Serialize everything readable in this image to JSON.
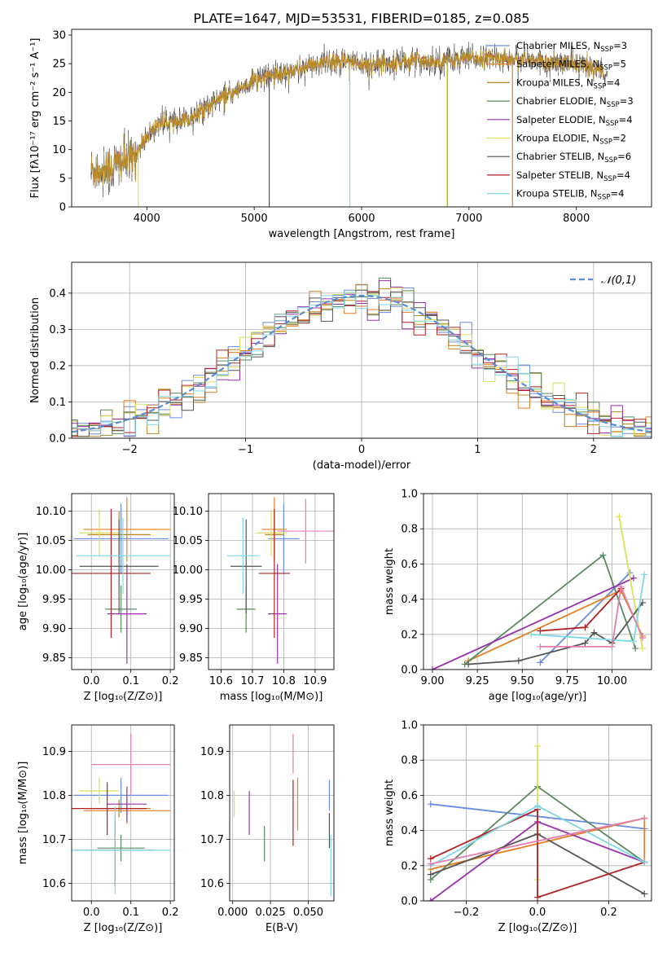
{
  "figure": {
    "title": "PLATE=1647, MJD=53531, FIBERID=0185, z=0.085"
  },
  "chart_data": [
    {
      "panel": "spectrum",
      "type": "line",
      "xlabel": "wavelength [Angstrom, rest frame]",
      "ylabel": "Flux [fλ10⁻¹⁷ erg cm⁻² s⁻¹ A⁻¹]",
      "xlim": [
        3300,
        8700
      ],
      "ylim": [
        0,
        31
      ],
      "xticks": [
        4000,
        5000,
        6000,
        7000,
        8000
      ],
      "yticks": [
        0,
        5,
        10,
        15,
        20,
        25,
        30
      ],
      "continuum": {
        "x": [
          3480,
          3600,
          3700,
          3800,
          3900,
          4000,
          4100,
          4200,
          4300,
          4400,
          4500,
          4600,
          4700,
          4800,
          4900,
          5000,
          5200,
          5400,
          5600,
          5800,
          6000,
          6200,
          6400,
          6600,
          6800,
          7000,
          7200,
          7400,
          7600,
          7800,
          8000,
          8200,
          8300
        ],
        "y": [
          6.5,
          6.5,
          7.2,
          8.0,
          9.0,
          12.5,
          14.5,
          14.8,
          14.5,
          15.5,
          17.0,
          18.0,
          19.0,
          19.8,
          21.0,
          22.0,
          23.0,
          24.0,
          25.0,
          25.5,
          25.0,
          25.0,
          25.5,
          25.5,
          25.5,
          26.0,
          26.0,
          26.0,
          25.5,
          25.0,
          25.0,
          24.0,
          23.5
        ]
      },
      "series": [
        {
          "name": "Chabrier MILES, N_SSP=3",
          "label_main": "Chabrier MILES, N",
          "label_sub": "SSP",
          "label_end": "=3",
          "color": "#6b8be0"
        },
        {
          "name": "Salpeter MILES, N_SSP=5",
          "label_main": "Salpeter MILES, N",
          "label_sub": "SSP",
          "label_end": "=5",
          "color": "#e67e22"
        },
        {
          "name": "Kroupa MILES, N_SSP=4",
          "label_main": "Kroupa MILES, N",
          "label_sub": "SSP",
          "label_end": "=4",
          "color": "#b7861f"
        },
        {
          "name": "Chabrier ELODIE, N_SSP=3",
          "label_main": "Chabrier ELODIE, N",
          "label_sub": "SSP",
          "label_end": "=3",
          "color": "#5a8a5f"
        },
        {
          "name": "Salpeter ELODIE, N_SSP=4",
          "label_main": "Salpeter ELODIE, N",
          "label_sub": "SSP",
          "label_end": "=4",
          "color": "#9b2fae"
        },
        {
          "name": "Kroupa ELODIE, N_SSP=2",
          "label_main": "Kroupa ELODIE, N",
          "label_sub": "SSP",
          "label_end": "=2",
          "color": "#d9e05a"
        },
        {
          "name": "Chabrier STELIB, N_SSP=6",
          "label_main": "Chabrier STELIB, N",
          "label_sub": "SSP",
          "label_end": "=6",
          "color": "#555555"
        },
        {
          "name": "Salpeter STELIB, N_SSP=4",
          "label_main": "Salpeter STELIB, N",
          "label_sub": "SSP",
          "label_end": "=4",
          "color": "#b22222"
        },
        {
          "name": "Kroupa STELIB, N_SSP=4",
          "label_main": "Kroupa STELIB, N",
          "label_sub": "SSP",
          "label_end": "=4",
          "color": "#7fd8e6"
        }
      ],
      "legend": "upper right"
    },
    {
      "panel": "residuals",
      "type": "histogram",
      "xlabel": "(data-model)/error",
      "ylabel": "Normed distribution",
      "xlim": [
        -2.5,
        2.5
      ],
      "ylim": [
        0,
        0.485
      ],
      "xticks": [
        -2,
        -1,
        0,
        1,
        2
      ],
      "yticks": [
        0.0,
        0.1,
        0.2,
        0.3,
        0.4
      ],
      "reference": {
        "name": "𝒩(0,1)",
        "color": "#5b8bd6"
      },
      "grid": true
    },
    {
      "panel": "age_vs_Z",
      "type": "errorbar",
      "xlabel": "Z [log₁₀(Z/Z⊙)]",
      "ylabel": "age  [log₁₀(age/yr)]",
      "xlim": [
        -0.05,
        0.21
      ],
      "ylim": [
        9.83,
        10.13
      ],
      "xticks": [
        0.0,
        0.1,
        0.2
      ],
      "yticks": [
        9.85,
        9.9,
        9.95,
        10.0,
        10.05,
        10.1
      ],
      "points": [
        {
          "series": 0,
          "x": 0.075,
          "xerr": 0.12,
          "y": 10.053,
          "yerr": 0.06
        },
        {
          "series": 1,
          "x": 0.09,
          "xerr": 0.11,
          "y": 10.069,
          "yerr": 0.055
        },
        {
          "series": 2,
          "x": 0.07,
          "xerr": 0.08,
          "y": 10.06,
          "yerr": 0.04
        },
        {
          "series": 3,
          "x": 0.075,
          "xerr": 0.04,
          "y": 9.933,
          "yerr": 0.04
        },
        {
          "series": 4,
          "x": 0.09,
          "xerr": 0.05,
          "y": 9.925,
          "yerr": 0.085
        },
        {
          "series": 5,
          "x": 0.02,
          "xerr": 0.05,
          "y": 10.063,
          "yerr": 0.04
        },
        {
          "series": 6,
          "x": 0.07,
          "xerr": 0.1,
          "y": 10.006,
          "yerr": 0.08
        },
        {
          "series": 7,
          "x": 0.05,
          "xerr": 0.1,
          "y": 9.994,
          "yerr": 0.11
        },
        {
          "series": 8,
          "x": 0.08,
          "xerr": 0.12,
          "y": 10.024,
          "yerr": 0.065
        }
      ],
      "grid": true
    },
    {
      "panel": "age_vs_mass",
      "type": "errorbar",
      "xlabel": "mass [log₁₀(M/M⊙)]",
      "ylabel": "",
      "xlim": [
        10.56,
        10.96
      ],
      "ylim": [
        9.83,
        10.13
      ],
      "xticks": [
        10.6,
        10.7,
        10.8,
        10.9
      ],
      "yticks": [
        9.85,
        9.9,
        9.95,
        10.0,
        10.05,
        10.1
      ],
      "points": [
        {
          "series": 0,
          "x": 10.8,
          "xerr": 0.05,
          "y": 10.053,
          "yerr": 0.06
        },
        {
          "series": 1,
          "x": 10.77,
          "xerr": 0.04,
          "y": 10.069,
          "yerr": 0.055
        },
        {
          "series": 2,
          "x": 10.77,
          "xerr": 0.03,
          "y": 10.06,
          "yerr": 0.04
        },
        {
          "series": 3,
          "x": 10.68,
          "xerr": 0.03,
          "y": 9.933,
          "yerr": 0.04
        },
        {
          "series": 4,
          "x": 10.78,
          "xerr": 0.03,
          "y": 9.925,
          "yerr": 0.085
        },
        {
          "series": 5,
          "x": 10.76,
          "xerr": 0.05,
          "y": 10.063,
          "yerr": 0.04
        },
        {
          "series": 6,
          "x": 10.68,
          "xerr": 0.05,
          "y": 10.006,
          "yerr": 0.08
        },
        {
          "series": 7,
          "x": 10.77,
          "xerr": 0.05,
          "y": 9.994,
          "yerr": 0.11
        },
        {
          "series": 8,
          "x": 10.67,
          "xerr": 0.05,
          "y": 10.024,
          "yerr": 0.065
        },
        {
          "series": "pink",
          "x": 10.87,
          "xerr": 0.09,
          "y": 10.066,
          "yerr": 0.055
        }
      ],
      "grid": true
    },
    {
      "panel": "mass_weight_vs_age",
      "type": "line",
      "xlabel": "age  [log₁₀(age/yr)]",
      "ylabel": "mass weight",
      "xlim": [
        8.95,
        10.22
      ],
      "ylim": [
        0.0,
        1.0
      ],
      "xticks": [
        9.0,
        9.25,
        9.5,
        9.75,
        10.0
      ],
      "yticks": [
        0.0,
        0.2,
        0.4,
        0.6,
        0.8,
        1.0
      ],
      "lines": [
        {
          "series": 0,
          "x": [
            9.6,
            10.1
          ],
          "y": [
            0.04,
            0.55
          ]
        },
        {
          "series": 1,
          "x": [
            9.2,
            10.05,
            10.17
          ],
          "y": [
            0.05,
            0.45,
            0.19
          ]
        },
        {
          "series": 3,
          "x": [
            9.18,
            9.95,
            10.13
          ],
          "y": [
            0.03,
            0.65,
            0.12
          ]
        },
        {
          "series": 4,
          "x": [
            9.0,
            10.12
          ],
          "y": [
            0.0,
            0.52
          ]
        },
        {
          "series": 5,
          "x": [
            10.04,
            10.17
          ],
          "y": [
            0.87,
            0.12
          ]
        },
        {
          "series": 6,
          "x": [
            9.2,
            9.48,
            9.85,
            9.9,
            10.0,
            10.17
          ],
          "y": [
            0.03,
            0.05,
            0.15,
            0.21,
            0.15,
            0.38
          ]
        },
        {
          "series": 7,
          "x": [
            9.6,
            9.85,
            10.05
          ],
          "y": [
            0.22,
            0.24,
            0.46
          ]
        },
        {
          "series": 8,
          "x": [
            9.55,
            10.12,
            10.18
          ],
          "y": [
            0.2,
            0.16,
            0.54
          ]
        },
        {
          "series": "pink",
          "x": [
            9.6,
            10.0,
            10.05,
            10.17
          ],
          "y": [
            0.13,
            0.13,
            0.47,
            0.18
          ]
        }
      ],
      "grid": true
    },
    {
      "panel": "mass_vs_Z",
      "type": "errorbar",
      "xlabel": "Z [log₁₀(Z/Z⊙)]",
      "ylabel": "mass [log₁₀(M/M⊙)]",
      "xlim": [
        -0.05,
        0.21
      ],
      "ylim": [
        10.56,
        10.96
      ],
      "xticks": [
        0.0,
        0.1,
        0.2
      ],
      "yticks": [
        10.6,
        10.7,
        10.8,
        10.9
      ],
      "points": [
        {
          "series": 0,
          "x": 0.075,
          "xerr": 0.12,
          "y": 10.8,
          "yerr": 0.04
        },
        {
          "series": 1,
          "x": 0.09,
          "xerr": 0.11,
          "y": 10.765,
          "yerr": 0.03
        },
        {
          "series": 2,
          "x": 0.07,
          "xerr": 0.08,
          "y": 10.77,
          "yerr": 0.02
        },
        {
          "series": 3,
          "x": 0.075,
          "xerr": 0.06,
          "y": 10.68,
          "yerr": 0.03
        },
        {
          "series": 4,
          "x": 0.09,
          "xerr": 0.05,
          "y": 10.78,
          "yerr": 0.04
        },
        {
          "series": 5,
          "x": 0.02,
          "xerr": 0.05,
          "y": 10.81,
          "yerr": 0.03
        },
        {
          "series": 6,
          "x": 0.06,
          "xerr": 0.1,
          "y": 10.675,
          "yerr": 0.08
        },
        {
          "series": 7,
          "x": 0.04,
          "xerr": 0.1,
          "y": 10.77,
          "yerr": 0.06
        },
        {
          "series": 8,
          "x": 0.06,
          "xerr": 0.14,
          "y": 10.675,
          "yerr": 0.1
        },
        {
          "series": "pink",
          "x": 0.1,
          "xerr": 0.1,
          "y": 10.87,
          "yerr": 0.07
        }
      ],
      "grid": true
    },
    {
      "panel": "mass_vs_EBV",
      "type": "errorbar",
      "xlabel": "E(B-V)",
      "ylabel": "",
      "xlim": [
        -0.002,
        0.067
      ],
      "ylim": [
        10.56,
        10.96
      ],
      "xticks": [
        0.0,
        0.025,
        0.05
      ],
      "xticklabels": [
        "0.000",
        "0.025",
        "0.050"
      ],
      "yticks": [
        10.6,
        10.7,
        10.8,
        10.9
      ],
      "points": [
        {
          "series": 0,
          "x": 0.064,
          "xerr": 0,
          "y": 10.8,
          "yerr": 0.035
        },
        {
          "series": 1,
          "x": 0.043,
          "xerr": 0,
          "y": 10.78,
          "yerr": 0.06
        },
        {
          "series": 3,
          "x": 0.021,
          "xerr": 0,
          "y": 10.69,
          "yerr": 0.04
        },
        {
          "series": 4,
          "x": 0.011,
          "xerr": 0,
          "y": 10.76,
          "yerr": 0.05
        },
        {
          "series": 5,
          "x": 0.001,
          "xerr": 0,
          "y": 10.78,
          "yerr": 0.03
        },
        {
          "series": 6,
          "x": 0.064,
          "xerr": 0,
          "y": 10.72,
          "yerr": 0.04
        },
        {
          "series": 7,
          "x": 0.04,
          "xerr": 0,
          "y": 10.76,
          "yerr": 0.075
        },
        {
          "series": 8,
          "x": 0.065,
          "xerr": 0,
          "y": 10.64,
          "yerr": 0.07
        },
        {
          "series": "pink",
          "x": 0.04,
          "xerr": 0,
          "y": 10.895,
          "yerr": 0.045
        }
      ],
      "grid": true
    },
    {
      "panel": "mass_weight_vs_Z",
      "type": "line",
      "xlabel": "Z [log₁₀(Z/Z⊙)]",
      "ylabel": "mass weight",
      "xlim": [
        -0.32,
        0.32
      ],
      "ylim": [
        0.0,
        1.0
      ],
      "xticks": [
        -0.2,
        0.0,
        0.2
      ],
      "yticks": [
        0.0,
        0.2,
        0.4,
        0.6,
        0.8,
        1.0
      ],
      "lines": [
        {
          "series": 0,
          "x": [
            -0.3,
            0.3
          ],
          "y": [
            0.55,
            0.41
          ]
        },
        {
          "series": 1,
          "x": [
            -0.3,
            0.3,
            0.3
          ],
          "y": [
            0.18,
            0.47,
            0.22
          ]
        },
        {
          "series": 3,
          "x": [
            -0.3,
            0.0,
            0.3
          ],
          "y": [
            0.12,
            0.65,
            0.22
          ]
        },
        {
          "series": 4,
          "x": [
            -0.3,
            0.0,
            0.3
          ],
          "y": [
            0.0,
            0.45,
            0.22
          ]
        },
        {
          "series": 5,
          "x": [
            0.0,
            0.0
          ],
          "y": [
            0.88,
            0.12
          ]
        },
        {
          "series": 6,
          "x": [
            -0.3,
            0.0,
            0.3
          ],
          "y": [
            0.15,
            0.38,
            0.04
          ]
        },
        {
          "series": 7,
          "x": [
            -0.3,
            0.0,
            0.0,
            0.3
          ],
          "y": [
            0.24,
            0.52,
            0.02,
            0.22
          ]
        },
        {
          "series": 8,
          "x": [
            -0.3,
            0.0,
            0.3
          ],
          "y": [
            0.2,
            0.54,
            0.22
          ]
        },
        {
          "series": "pink",
          "x": [
            -0.3,
            0.3
          ],
          "y": [
            0.21,
            0.47
          ]
        }
      ],
      "grid": true
    }
  ]
}
